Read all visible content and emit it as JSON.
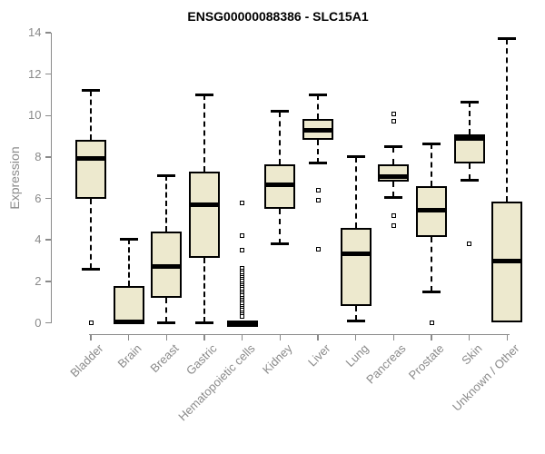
{
  "page": {
    "background": "#ffffff"
  },
  "chart_data": {
    "type": "boxplot",
    "title": "ENSG00000088386 - SLC15A1",
    "ylabel": "Expression",
    "xlabel": "",
    "ylim": [
      0,
      14
    ],
    "yticks": [
      0,
      2,
      4,
      6,
      8,
      10,
      12,
      14
    ],
    "grid": false,
    "legend": false,
    "colors": {
      "box_fill": "#EDE9CE",
      "box_border": "#000000",
      "median": "#000000",
      "axis": "#8A8A8A",
      "tick_text": "#8A8A8A",
      "title_text": "#000000"
    },
    "categories": [
      "Bladder",
      "Brain",
      "Breast",
      "Gastric",
      "Hematopoietic cells",
      "Kidney",
      "Liver",
      "Lung",
      "Pancreas",
      "Prostate",
      "Skin",
      "Unknown / Other"
    ],
    "boxes": [
      {
        "category": "Bladder",
        "lower_whisker": 2.6,
        "q1": 6.0,
        "median": 7.95,
        "q3": 8.85,
        "upper_whisker": 11.2,
        "outliers": [
          0
        ]
      },
      {
        "category": "Brain",
        "lower_whisker": null,
        "q1": 0,
        "median": 0.05,
        "q3": 1.77,
        "upper_whisker": 4.05,
        "outliers": []
      },
      {
        "category": "Breast",
        "lower_whisker": 0,
        "q1": 1.2,
        "median": 2.7,
        "q3": 4.4,
        "upper_whisker": 7.1,
        "outliers": []
      },
      {
        "category": "Gastric",
        "lower_whisker": 0,
        "q1": 3.15,
        "median": 5.7,
        "q3": 7.3,
        "upper_whisker": 11.0,
        "outliers": []
      },
      {
        "category": "Hematopoietic cells",
        "lower_whisker": null,
        "q1": 0,
        "median": 0,
        "q3": 0,
        "upper_whisker": null,
        "outliers": [
          5.8,
          4.2,
          3.5,
          2.65,
          2.5,
          2.4,
          2.3,
          2.2,
          2.1,
          2.0,
          1.9,
          1.8,
          1.7,
          1.6,
          1.5,
          1.4,
          1.3,
          1.2,
          1.1,
          1.0,
          0.9,
          0.8,
          0.7,
          0.6,
          0.5,
          0.4,
          0.3
        ]
      },
      {
        "category": "Kidney",
        "lower_whisker": 3.8,
        "q1": 5.5,
        "median": 6.65,
        "q3": 7.65,
        "upper_whisker": 10.2,
        "outliers": []
      },
      {
        "category": "Liver",
        "lower_whisker": 7.7,
        "q1": 8.85,
        "median": 9.3,
        "q3": 9.85,
        "upper_whisker": 11.0,
        "outliers": [
          6.4,
          5.9,
          3.55
        ]
      },
      {
        "category": "Lung",
        "lower_whisker": 0.1,
        "q1": 0.8,
        "median": 3.35,
        "q3": 4.6,
        "upper_whisker": 8.0,
        "outliers": []
      },
      {
        "category": "Pancreas",
        "lower_whisker": 6.05,
        "q1": 6.8,
        "median": 7.05,
        "q3": 7.65,
        "upper_whisker": 8.5,
        "outliers": [
          10.1,
          9.75,
          5.15,
          4.7
        ]
      },
      {
        "category": "Prostate",
        "lower_whisker": 1.5,
        "q1": 4.15,
        "median": 5.45,
        "q3": 6.6,
        "upper_whisker": 8.65,
        "outliers": [
          0
        ]
      },
      {
        "category": "Skin",
        "lower_whisker": 6.9,
        "q1": 7.7,
        "median": 8.9,
        "q3": 9.1,
        "upper_whisker": 10.65,
        "outliers": [
          3.8
        ]
      },
      {
        "category": "Unknown / Other",
        "lower_whisker": null,
        "q1": 0,
        "median": 3.0,
        "q3": 5.85,
        "upper_whisker": 13.7,
        "outliers": []
      }
    ]
  }
}
